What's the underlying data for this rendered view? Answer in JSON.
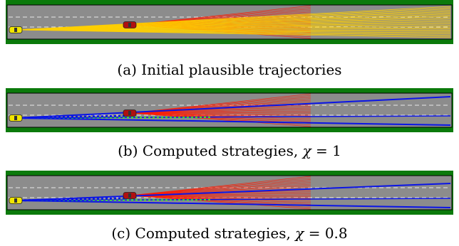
{
  "colors": {
    "grass": "#0b7a0b",
    "road": "#8c8c8c",
    "lane_marking": "#e8e8e8",
    "ego_car": "#f2e600",
    "other_car": "#b01010",
    "plausible_fan_ego": "#ffd000",
    "plausible_fan_other": "#ff1a00",
    "strategy": "#0a14e6",
    "strategy_dotted": "#2ee62e"
  },
  "panels": [
    {
      "id": "a",
      "caption": {
        "prefix": "(a) Initial plausible trajectories",
        "symbol": "",
        "suffix": ""
      },
      "show_ego_fan": true,
      "show_strategies": false
    },
    {
      "id": "b",
      "caption": {
        "prefix": "(b) Computed strategies, ",
        "symbol": "χ",
        "suffix": " = 1"
      },
      "show_ego_fan": false,
      "show_strategies": true,
      "strategy_spread": 1.0
    },
    {
      "id": "c",
      "caption": {
        "prefix": "(c) Computed strategies, ",
        "symbol": "χ",
        "suffix": " = 0.8"
      },
      "show_ego_fan": false,
      "show_strategies": true,
      "strategy_spread": 0.8
    }
  ]
}
